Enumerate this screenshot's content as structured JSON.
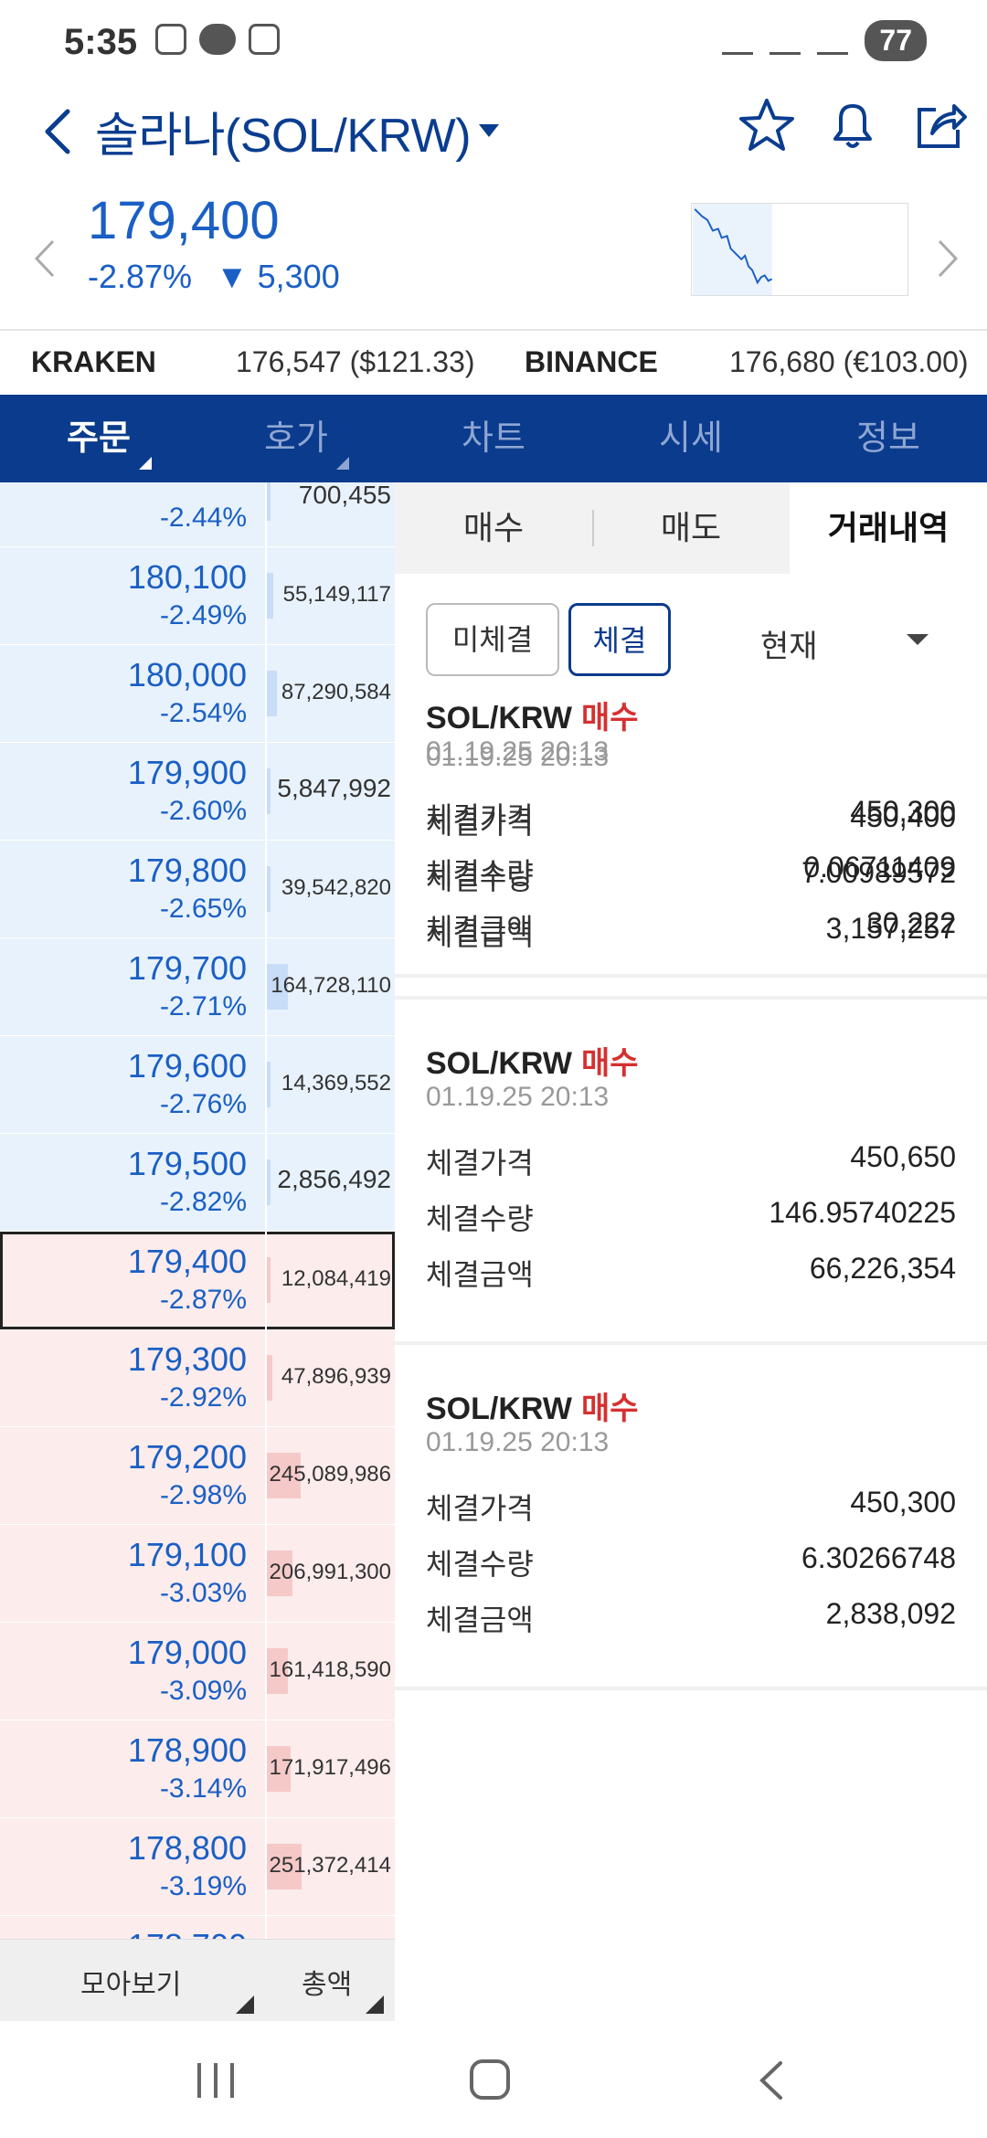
{
  "status": {
    "time": "5:35",
    "talk": "TALK",
    "battery": "77"
  },
  "header": {
    "title": "솔라나(SOL/KRW)",
    "icons": [
      "back-icon",
      "star-icon",
      "bell-icon",
      "share-icon"
    ]
  },
  "price": {
    "current": "179,400",
    "change_pct": "-2.87%",
    "change_amt": "▼ 5,300"
  },
  "exchanges": [
    {
      "name": "KRAKEN",
      "value": "176,547 ($121.33)"
    },
    {
      "name": "BINANCE",
      "value": "176,680 (€103.00)"
    }
  ],
  "tabs": [
    "주문",
    "호가",
    "차트",
    "시세",
    "정보"
  ],
  "orderbook": {
    "rows": [
      {
        "type": "ask",
        "price": "",
        "pct": "-2.44%",
        "qty": "700,455",
        "bar": 0.02
      },
      {
        "type": "ask",
        "price": "180,100",
        "pct": "-2.49%",
        "qty": "55,149,117",
        "bar": 0.05
      },
      {
        "type": "ask",
        "price": "180,000",
        "pct": "-2.54%",
        "qty": "87,290,584",
        "bar": 0.08
      },
      {
        "type": "ask",
        "price": "179,900",
        "pct": "-2.60%",
        "qty": "5,847,992",
        "bar": 0.01
      },
      {
        "type": "ask",
        "price": "179,800",
        "pct": "-2.65%",
        "qty": "39,542,820",
        "bar": 0.03
      },
      {
        "type": "ask",
        "price": "179,700",
        "pct": "-2.71%",
        "qty": "164,728,110",
        "bar": 0.16
      },
      {
        "type": "ask",
        "price": "179,600",
        "pct": "-2.76%",
        "qty": "14,369,552",
        "bar": 0.02
      },
      {
        "type": "ask",
        "price": "179,500",
        "pct": "-2.82%",
        "qty": "2,856,492",
        "bar": 0.0
      },
      {
        "type": "bid",
        "price": "179,400",
        "pct": "-2.87%",
        "qty": "12,084,419",
        "bar": 0.01,
        "current": true
      },
      {
        "type": "bid",
        "price": "179,300",
        "pct": "-2.92%",
        "qty": "47,896,939",
        "bar": 0.04
      },
      {
        "type": "bid",
        "price": "179,200",
        "pct": "-2.98%",
        "qty": "245,089,986",
        "bar": 0.26
      },
      {
        "type": "bid",
        "price": "179,100",
        "pct": "-3.03%",
        "qty": "206,991,300",
        "bar": 0.2
      },
      {
        "type": "bid",
        "price": "179,000",
        "pct": "-3.09%",
        "qty": "161,418,590",
        "bar": 0.16
      },
      {
        "type": "bid",
        "price": "178,900",
        "pct": "-3.14%",
        "qty": "171,917,496",
        "bar": 0.18
      },
      {
        "type": "bid",
        "price": "178,800",
        "pct": "-3.19%",
        "qty": "251,372,414",
        "bar": 0.27
      },
      {
        "type": "bid",
        "price": "178,700",
        "pct": "",
        "qty": "",
        "bar": 0.0
      }
    ],
    "footer_left": "모아보기",
    "footer_right": "총액"
  },
  "panel": {
    "segments": [
      "매수",
      "매도",
      "거래내역"
    ],
    "filter_off": "미체결",
    "filter_on": "체결",
    "select": "현재",
    "trades": [
      {
        "pair": "",
        "side": "",
        "time": "01.19.25 20:13",
        "price": "450,400",
        "qty": "7.00989572",
        "amount": "3,157,257"
      },
      {
        "pair": "SOL/KRW",
        "side": "매수",
        "time": "01.19.25 20:13",
        "price": "450,300",
        "qty": "0.06711409",
        "amount": "30,222"
      },
      {
        "pair": "SOL/KRW",
        "side": "매수",
        "time": "01.19.25 20:13",
        "price": "450,650",
        "qty": "146.95740225",
        "amount": "66,226,354"
      },
      {
        "pair": "SOL/KRW",
        "side": "매수",
        "time": "01.19.25 20:13",
        "price": "450,300",
        "qty": "6.30266748",
        "amount": "2,838,092"
      }
    ],
    "labels": {
      "price": "체결가격",
      "qty": "체결수량",
      "amount": "체결금액"
    }
  },
  "colors": {
    "accent": "#0b3b8c",
    "up_down_blue": "#1a5fc4",
    "buy_red": "#d63030",
    "ask_bg": "#e8f2fc",
    "bid_bg": "#fcecec"
  }
}
